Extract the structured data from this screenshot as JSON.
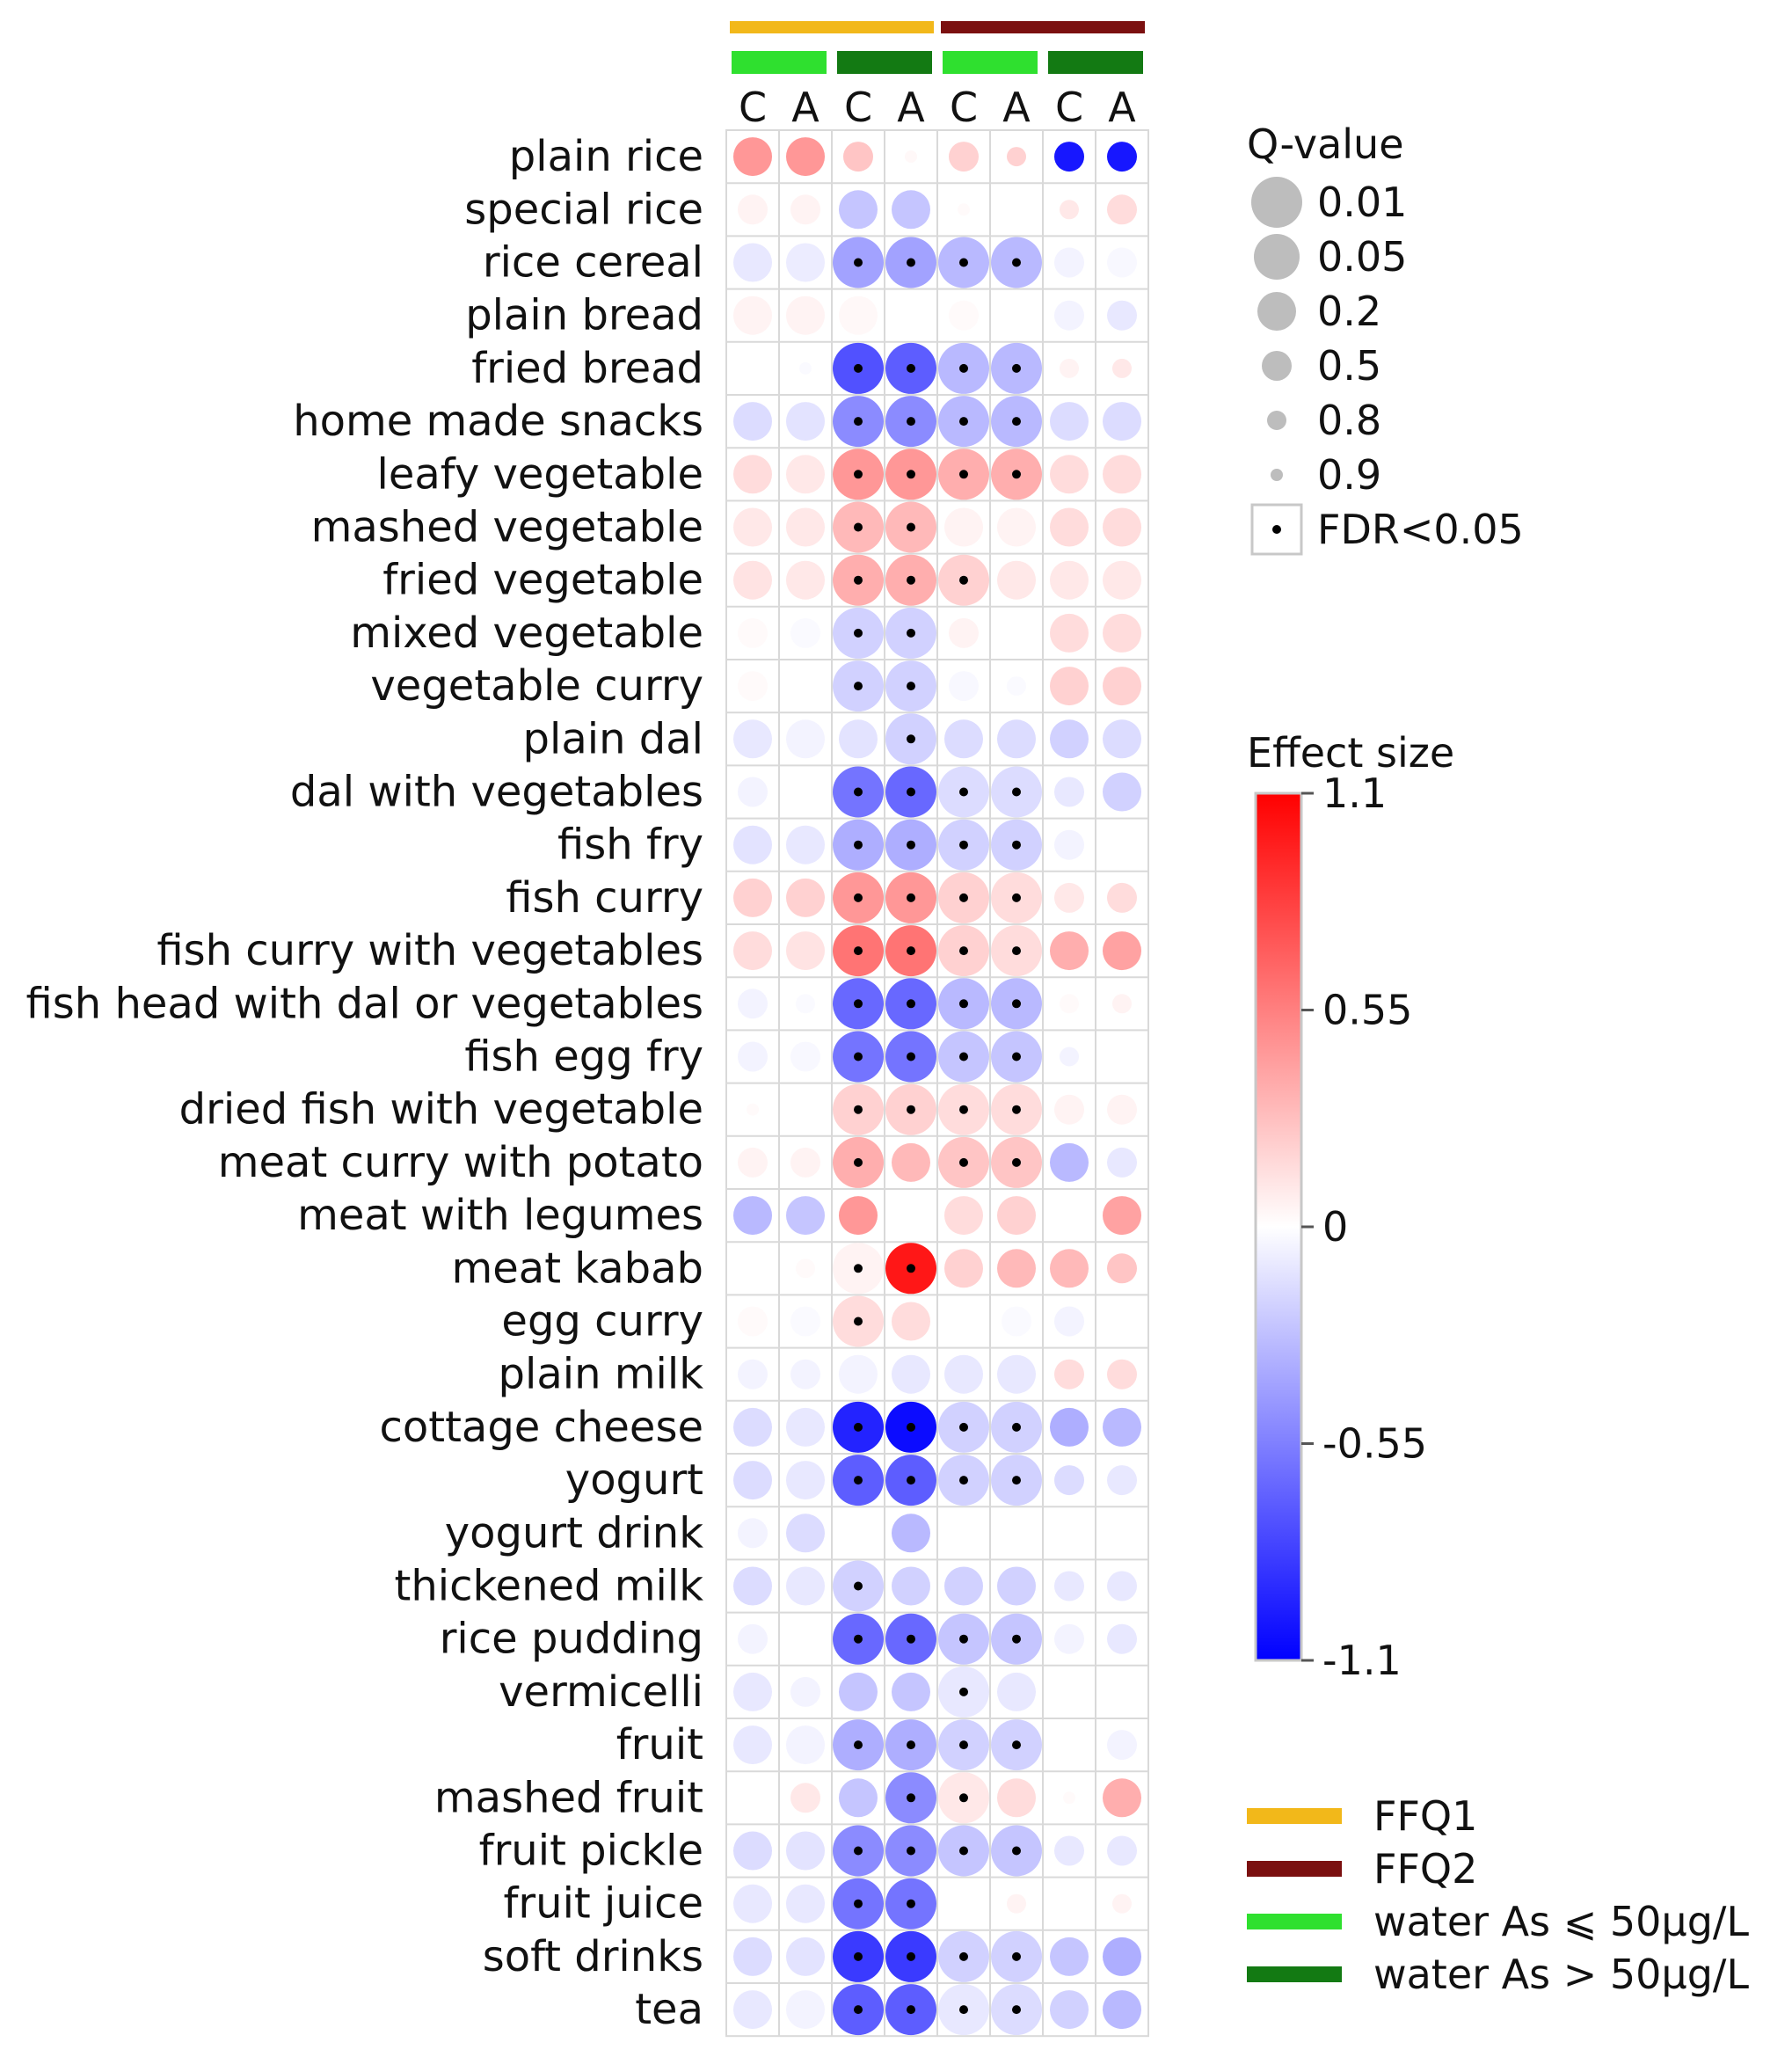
{
  "chart_data": {
    "type": "heatmap",
    "subtype": "dot-matrix",
    "rows": [
      "plain rice",
      "special rice",
      "rice cereal",
      "plain bread",
      "fried bread",
      "home made snacks",
      "leafy vegetable",
      "mashed vegetable",
      "fried vegetable",
      "mixed vegetable",
      "vegetable curry",
      "plain dal",
      "dal with vegetables",
      "fish fry",
      "fish curry",
      "fish curry with vegetables",
      "fish head with dal or vegetables",
      "fish egg fry",
      "dried fish with vegetable",
      "meat curry with potato",
      "meat with legumes",
      "meat kabab",
      "egg curry",
      "plain milk",
      "cottage cheese",
      "yogurt",
      "yogurt drink",
      "thickened milk",
      "rice pudding",
      "vermicelli",
      "fruit",
      "mashed fruit",
      "fruit pickle",
      "fruit juice",
      "soft drinks",
      "tea"
    ],
    "columns": [
      "C",
      "A",
      "C",
      "A",
      "C",
      "A",
      "C",
      "A"
    ],
    "column_groups": [
      {
        "label": "FFQ1",
        "color": "#f2b81a",
        "span": [
          0,
          3
        ]
      },
      {
        "label": "FFQ2",
        "color": "#7b1010",
        "span": [
          4,
          7
        ]
      }
    ],
    "column_subgroups": [
      {
        "label": "water As ⩽ 50µg/L",
        "color": "#2fe02f",
        "span": [
          0,
          1
        ]
      },
      {
        "label": "water As > 50µg/L",
        "color": "#137a13",
        "span": [
          2,
          3
        ]
      },
      {
        "label": "water As ⩽ 50µg/L",
        "color": "#2fe02f",
        "span": [
          4,
          5
        ]
      },
      {
        "label": "water As > 50µg/L",
        "color": "#137a13",
        "span": [
          6,
          7
        ]
      }
    ],
    "effect_size": [
      [
        0.45,
        0.45,
        0.25,
        0.03,
        0.2,
        0.2,
        -1.0,
        -1.0
      ],
      [
        0.05,
        0.05,
        -0.25,
        -0.25,
        0.02,
        0,
        0.1,
        0.15
      ],
      [
        -0.1,
        -0.08,
        -0.4,
        -0.4,
        -0.3,
        -0.3,
        -0.05,
        -0.03
      ],
      [
        0.05,
        0.05,
        0.03,
        0,
        0.02,
        0,
        -0.05,
        -0.1
      ],
      [
        0,
        -0.02,
        -0.75,
        -0.7,
        -0.3,
        -0.3,
        0.05,
        0.1
      ],
      [
        -0.15,
        -0.12,
        -0.5,
        -0.5,
        -0.3,
        -0.3,
        -0.15,
        -0.15
      ],
      [
        0.15,
        0.1,
        0.45,
        0.45,
        0.35,
        0.35,
        0.15,
        0.15
      ],
      [
        0.1,
        0.1,
        0.3,
        0.3,
        0.05,
        0.05,
        0.15,
        0.15
      ],
      [
        0.12,
        0.1,
        0.35,
        0.35,
        0.2,
        0.1,
        0.1,
        0.1
      ],
      [
        0.02,
        -0.02,
        -0.2,
        -0.2,
        0.05,
        0,
        0.15,
        0.15
      ],
      [
        0.02,
        0,
        -0.2,
        -0.2,
        -0.03,
        -0.02,
        0.2,
        0.2
      ],
      [
        -0.1,
        -0.05,
        -0.12,
        -0.2,
        -0.15,
        -0.15,
        -0.2,
        -0.15
      ],
      [
        -0.05,
        0,
        -0.6,
        -0.65,
        -0.15,
        -0.15,
        -0.1,
        -0.2
      ],
      [
        -0.12,
        -0.1,
        -0.35,
        -0.35,
        -0.2,
        -0.2,
        -0.05,
        0
      ],
      [
        0.2,
        0.2,
        0.45,
        0.45,
        0.2,
        0.15,
        0.1,
        0.15
      ],
      [
        0.15,
        0.12,
        0.6,
        0.6,
        0.2,
        0.15,
        0.35,
        0.4
      ],
      [
        -0.05,
        -0.02,
        -0.65,
        -0.65,
        -0.3,
        -0.3,
        0.02,
        0.05
      ],
      [
        -0.05,
        -0.03,
        -0.6,
        -0.6,
        -0.25,
        -0.25,
        -0.05,
        0
      ],
      [
        0.02,
        0,
        0.2,
        0.2,
        0.15,
        0.15,
        0.05,
        0.05
      ],
      [
        0.05,
        0.05,
        0.35,
        0.3,
        0.25,
        0.25,
        -0.3,
        -0.1
      ],
      [
        -0.3,
        -0.25,
        0.45,
        0,
        0.15,
        0.2,
        0,
        0.4
      ],
      [
        0,
        0.02,
        0.05,
        1.0,
        0.2,
        0.3,
        0.3,
        0.25
      ],
      [
        0.02,
        -0.02,
        0.15,
        0.15,
        0,
        -0.02,
        -0.05,
        0
      ],
      [
        -0.05,
        -0.05,
        -0.05,
        -0.1,
        -0.1,
        -0.1,
        0.15,
        0.15
      ],
      [
        -0.15,
        -0.1,
        -0.95,
        -1.05,
        -0.2,
        -0.2,
        -0.35,
        -0.3
      ],
      [
        -0.15,
        -0.1,
        -0.7,
        -0.7,
        -0.2,
        -0.2,
        -0.15,
        -0.1
      ],
      [
        -0.05,
        -0.15,
        0,
        -0.3,
        0,
        0,
        0,
        0
      ],
      [
        -0.15,
        -0.1,
        -0.2,
        -0.2,
        -0.2,
        -0.2,
        -0.1,
        -0.1
      ],
      [
        -0.05,
        0,
        -0.65,
        -0.65,
        -0.25,
        -0.25,
        -0.05,
        -0.1
      ],
      [
        -0.1,
        -0.05,
        -0.25,
        -0.25,
        -0.1,
        -0.1,
        0,
        0
      ],
      [
        -0.1,
        -0.05,
        -0.35,
        -0.35,
        -0.2,
        -0.2,
        0,
        -0.05
      ],
      [
        0,
        0.1,
        -0.25,
        -0.5,
        0.1,
        0.15,
        0.02,
        0.35
      ],
      [
        -0.15,
        -0.12,
        -0.5,
        -0.5,
        -0.25,
        -0.25,
        -0.1,
        -0.1
      ],
      [
        -0.1,
        -0.1,
        -0.6,
        -0.6,
        0,
        0.05,
        0,
        0.05
      ],
      [
        -0.15,
        -0.12,
        -0.85,
        -0.85,
        -0.2,
        -0.2,
        -0.25,
        -0.35
      ],
      [
        -0.1,
        -0.05,
        -0.7,
        -0.7,
        -0.1,
        -0.15,
        -0.2,
        -0.3
      ]
    ],
    "q_value": [
      [
        0.2,
        0.2,
        0.5,
        0.9,
        0.5,
        0.8,
        0.5,
        0.5
      ],
      [
        0.5,
        0.5,
        0.2,
        0.2,
        0.9,
        0.9,
        0.8,
        0.5
      ],
      [
        0.2,
        0.2,
        0.01,
        0.01,
        0.01,
        0.01,
        0.5,
        0.5
      ],
      [
        0.2,
        0.2,
        0.2,
        0.2,
        0.5,
        0.9,
        0.5,
        0.5
      ],
      [
        0.9,
        0.9,
        0.01,
        0.01,
        0.01,
        0.01,
        0.8,
        0.8
      ],
      [
        0.2,
        0.2,
        0.01,
        0.01,
        0.01,
        0.01,
        0.2,
        0.2
      ],
      [
        0.2,
        0.2,
        0.01,
        0.01,
        0.01,
        0.01,
        0.2,
        0.2
      ],
      [
        0.2,
        0.2,
        0.01,
        0.01,
        0.2,
        0.2,
        0.2,
        0.2
      ],
      [
        0.2,
        0.2,
        0.01,
        0.01,
        0.01,
        0.2,
        0.2,
        0.2
      ],
      [
        0.5,
        0.5,
        0.01,
        0.01,
        0.5,
        0.9,
        0.2,
        0.2
      ],
      [
        0.5,
        0.9,
        0.01,
        0.01,
        0.5,
        0.8,
        0.2,
        0.2
      ],
      [
        0.2,
        0.2,
        0.2,
        0.01,
        0.2,
        0.2,
        0.2,
        0.2
      ],
      [
        0.5,
        0.9,
        0.01,
        0.01,
        0.01,
        0.01,
        0.5,
        0.2
      ],
      [
        0.2,
        0.2,
        0.01,
        0.01,
        0.01,
        0.01,
        0.5,
        0.9
      ],
      [
        0.2,
        0.2,
        0.01,
        0.01,
        0.01,
        0.01,
        0.5,
        0.5
      ],
      [
        0.2,
        0.2,
        0.01,
        0.01,
        0.01,
        0.01,
        0.2,
        0.2
      ],
      [
        0.5,
        0.8,
        0.01,
        0.01,
        0.01,
        0.01,
        0.8,
        0.8
      ],
      [
        0.5,
        0.5,
        0.01,
        0.01,
        0.01,
        0.01,
        0.8,
        0.9
      ],
      [
        0.9,
        0.9,
        0.01,
        0.01,
        0.01,
        0.01,
        0.5,
        0.5
      ],
      [
        0.5,
        0.5,
        0.01,
        0.2,
        0.01,
        0.01,
        0.2,
        0.5
      ],
      [
        0.2,
        0.2,
        0.2,
        0.9,
        0.2,
        0.2,
        0.8,
        0.2
      ],
      [
        0.9,
        0.8,
        0.01,
        0.01,
        0.2,
        0.2,
        0.2,
        0.5
      ],
      [
        0.5,
        0.5,
        0.01,
        0.2,
        0.9,
        0.5,
        0.5,
        0.8
      ],
      [
        0.5,
        0.5,
        0.2,
        0.2,
        0.2,
        0.2,
        0.5,
        0.5
      ],
      [
        0.2,
        0.2,
        0.01,
        0.01,
        0.01,
        0.01,
        0.2,
        0.2
      ],
      [
        0.2,
        0.2,
        0.01,
        0.01,
        0.01,
        0.01,
        0.5,
        0.5
      ],
      [
        0.5,
        0.2,
        0.9,
        0.2,
        0.9,
        0.9,
        0.9,
        0.9
      ],
      [
        0.2,
        0.2,
        0.01,
        0.2,
        0.2,
        0.2,
        0.5,
        0.5
      ],
      [
        0.5,
        0.9,
        0.01,
        0.01,
        0.01,
        0.01,
        0.5,
        0.5
      ],
      [
        0.2,
        0.5,
        0.2,
        0.2,
        0.01,
        0.2,
        0.9,
        0.9
      ],
      [
        0.2,
        0.2,
        0.01,
        0.01,
        0.01,
        0.01,
        0.8,
        0.5
      ],
      [
        0.9,
        0.5,
        0.2,
        0.01,
        0.01,
        0.2,
        0.9,
        0.2
      ],
      [
        0.2,
        0.2,
        0.01,
        0.01,
        0.01,
        0.01,
        0.5,
        0.5
      ],
      [
        0.2,
        0.2,
        0.01,
        0.01,
        0.9,
        0.8,
        0.9,
        0.8
      ],
      [
        0.2,
        0.2,
        0.01,
        0.01,
        0.01,
        0.01,
        0.2,
        0.2
      ],
      [
        0.2,
        0.2,
        0.01,
        0.01,
        0.01,
        0.01,
        0.2,
        0.2
      ]
    ],
    "fdr_significant": [
      [
        0,
        0,
        0,
        0,
        0,
        0,
        0,
        0
      ],
      [
        0,
        0,
        0,
        0,
        0,
        0,
        0,
        0
      ],
      [
        0,
        0,
        1,
        1,
        1,
        1,
        0,
        0
      ],
      [
        0,
        0,
        0,
        0,
        0,
        0,
        0,
        0
      ],
      [
        0,
        0,
        1,
        1,
        1,
        1,
        0,
        0
      ],
      [
        0,
        0,
        1,
        1,
        1,
        1,
        0,
        0
      ],
      [
        0,
        0,
        1,
        1,
        1,
        1,
        0,
        0
      ],
      [
        0,
        0,
        1,
        1,
        0,
        0,
        0,
        0
      ],
      [
        0,
        0,
        1,
        1,
        1,
        0,
        0,
        0
      ],
      [
        0,
        0,
        1,
        1,
        0,
        0,
        0,
        0
      ],
      [
        0,
        0,
        1,
        1,
        0,
        0,
        0,
        0
      ],
      [
        0,
        0,
        0,
        1,
        0,
        0,
        0,
        0
      ],
      [
        0,
        0,
        1,
        1,
        1,
        1,
        0,
        0
      ],
      [
        0,
        0,
        1,
        1,
        1,
        1,
        0,
        0
      ],
      [
        0,
        0,
        1,
        1,
        1,
        1,
        0,
        0
      ],
      [
        0,
        0,
        1,
        1,
        1,
        1,
        0,
        0
      ],
      [
        0,
        0,
        1,
        1,
        1,
        1,
        0,
        0
      ],
      [
        0,
        0,
        1,
        1,
        1,
        1,
        0,
        0
      ],
      [
        0,
        0,
        1,
        1,
        1,
        1,
        0,
        0
      ],
      [
        0,
        0,
        1,
        0,
        1,
        1,
        0,
        0
      ],
      [
        0,
        0,
        0,
        0,
        0,
        0,
        0,
        0
      ],
      [
        0,
        0,
        1,
        1,
        0,
        0,
        0,
        0
      ],
      [
        0,
        0,
        1,
        0,
        0,
        0,
        0,
        0
      ],
      [
        0,
        0,
        0,
        0,
        0,
        0,
        0,
        0
      ],
      [
        0,
        0,
        1,
        1,
        1,
        1,
        0,
        0
      ],
      [
        0,
        0,
        1,
        1,
        1,
        1,
        0,
        0
      ],
      [
        0,
        0,
        0,
        0,
        0,
        0,
        0,
        0
      ],
      [
        0,
        0,
        1,
        0,
        0,
        0,
        0,
        0
      ],
      [
        0,
        0,
        1,
        1,
        1,
        1,
        0,
        0
      ],
      [
        0,
        0,
        0,
        0,
        1,
        0,
        0,
        0
      ],
      [
        0,
        0,
        1,
        1,
        1,
        1,
        0,
        0
      ],
      [
        0,
        0,
        0,
        1,
        1,
        0,
        0,
        0
      ],
      [
        0,
        0,
        1,
        1,
        1,
        1,
        0,
        0
      ],
      [
        0,
        0,
        1,
        1,
        0,
        0,
        0,
        0
      ],
      [
        0,
        0,
        1,
        1,
        1,
        1,
        0,
        0
      ],
      [
        0,
        0,
        1,
        1,
        1,
        1,
        0,
        0
      ]
    ],
    "qvalue_legend": {
      "title": "Q-value",
      "levels": [
        "0.01",
        "0.05",
        "0.2",
        "0.5",
        "0.8",
        "0.9"
      ],
      "level_values": [
        0.01,
        0.05,
        0.2,
        0.5,
        0.8,
        0.9
      ],
      "fdr_label": "FDR<0.05"
    },
    "color_scale": {
      "title": "Effect size",
      "min": -1.1,
      "max": 1.1,
      "ticks": [
        1.1,
        0.55,
        0,
        -0.55,
        -1.1
      ],
      "tick_labels": [
        "1.1",
        "0.55",
        "0",
        "-0.55",
        "-1.1"
      ],
      "low_color": "#0000ff",
      "mid_color": "#ffffff",
      "high_color": "#ff0000"
    },
    "group_legend": [
      {
        "label": "FFQ1",
        "color": "#f2b81a"
      },
      {
        "label": "FFQ2",
        "color": "#7b1010"
      },
      {
        "label": "water As ⩽ 50µg/L",
        "color": "#2fe02f"
      },
      {
        "label": "water As > 50µg/L",
        "color": "#137a13"
      }
    ]
  }
}
